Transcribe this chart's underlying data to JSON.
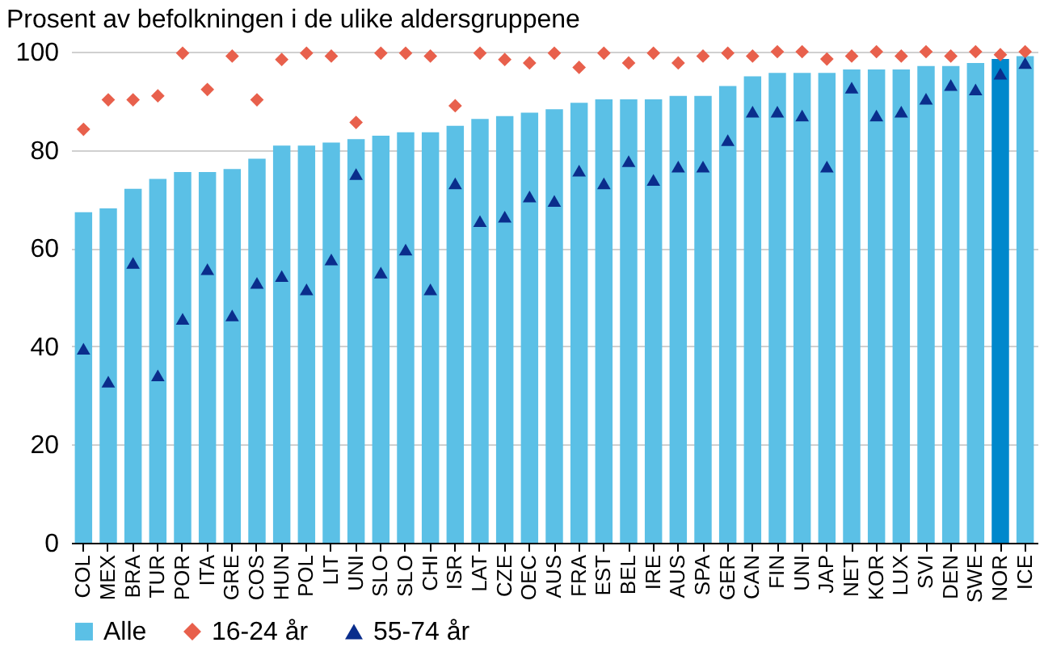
{
  "chart_data": {
    "type": "bar",
    "title": "Prosent av befolkningen i de ulike aldersgruppene",
    "categories": [
      "COL",
      "MEX",
      "BRA",
      "TUR",
      "POR",
      "ITA",
      "GRE",
      "COS",
      "HUN",
      "POL",
      "LIT",
      "UNI",
      "SLO",
      "SLO",
      "CHI",
      "ISR",
      "LAT",
      "CZE",
      "OEC",
      "AUS",
      "FRA",
      "EST",
      "BEL",
      "IRE",
      "AUS",
      "SPA",
      "GER",
      "CAN",
      "FIN",
      "UNI",
      "JAP",
      "NET",
      "KOR",
      "LUX",
      "SVI",
      "DEN",
      "SWE",
      "NOR",
      "ICE"
    ],
    "series": [
      {
        "name": "Alle",
        "color": "#5bc0e6",
        "colors": [
          "#5bc0e6",
          "#5bc0e6",
          "#5bc0e6",
          "#5bc0e6",
          "#5bc0e6",
          "#5bc0e6",
          "#5bc0e6",
          "#5bc0e6",
          "#5bc0e6",
          "#5bc0e6",
          "#5bc0e6",
          "#5bc0e6",
          "#5bc0e6",
          "#5bc0e6",
          "#5bc0e6",
          "#5bc0e6",
          "#5bc0e6",
          "#5bc0e6",
          "#5bc0e6",
          "#5bc0e6",
          "#5bc0e6",
          "#5bc0e6",
          "#5bc0e6",
          "#5bc0e6",
          "#5bc0e6",
          "#5bc0e6",
          "#5bc0e6",
          "#5bc0e6",
          "#5bc0e6",
          "#5bc0e6",
          "#5bc0e6",
          "#5bc0e6",
          "#5bc0e6",
          "#5bc0e6",
          "#5bc0e6",
          "#5bc0e6",
          "#5bc0e6",
          "#0088cc",
          "#5bc0e6"
        ],
        "values": [
          67.3,
          68.1,
          72.1,
          74.1,
          75.5,
          75.5,
          76.1,
          78.2,
          80.9,
          80.9,
          81.5,
          82.2,
          82.9,
          83.6,
          83.6,
          84.9,
          86.3,
          86.9,
          87.6,
          88.3,
          89.6,
          90.3,
          90.3,
          90.3,
          91.0,
          91.0,
          93.0,
          95.0,
          95.7,
          95.7,
          95.7,
          96.4,
          96.4,
          96.4,
          97.1,
          97.1,
          97.7,
          98.5,
          99.1
        ]
      },
      {
        "name": "16-24 år",
        "type": "scatter",
        "marker": "diamond",
        "color": "#e8604c",
        "values": [
          84.2,
          90.2,
          90.2,
          91.0,
          99.7,
          92.3,
          99.1,
          90.2,
          98.4,
          99.7,
          99.1,
          85.6,
          99.7,
          99.7,
          99.1,
          89.0,
          99.7,
          98.4,
          97.7,
          99.7,
          96.8,
          99.7,
          97.7,
          99.7,
          97.7,
          99.1,
          99.7,
          99.1,
          100,
          100,
          98.5,
          99.1,
          100,
          99.1,
          100,
          99.1,
          100,
          99.4,
          100
        ]
      },
      {
        "name": "55-74 år",
        "type": "scatter",
        "marker": "triangle",
        "color": "#0a2d8c",
        "values": [
          39.5,
          32.8,
          57.0,
          34.1,
          45.6,
          55.7,
          46.3,
          52.9,
          54.3,
          51.6,
          57.7,
          75.1,
          55.0,
          59.7,
          51.6,
          73.2,
          65.5,
          66.4,
          70.5,
          69.6,
          75.8,
          73.2,
          77.7,
          73.9,
          76.6,
          76.6,
          82.0,
          87.8,
          87.8,
          87.0,
          76.6,
          92.7,
          87.0,
          87.8,
          90.4,
          93.2,
          92.3,
          95.5,
          97.7
        ]
      }
    ],
    "ylim": [
      0,
      100
    ],
    "yticks": [
      0,
      20,
      40,
      60,
      80,
      100
    ],
    "grid": "y",
    "legend": "bottom"
  }
}
